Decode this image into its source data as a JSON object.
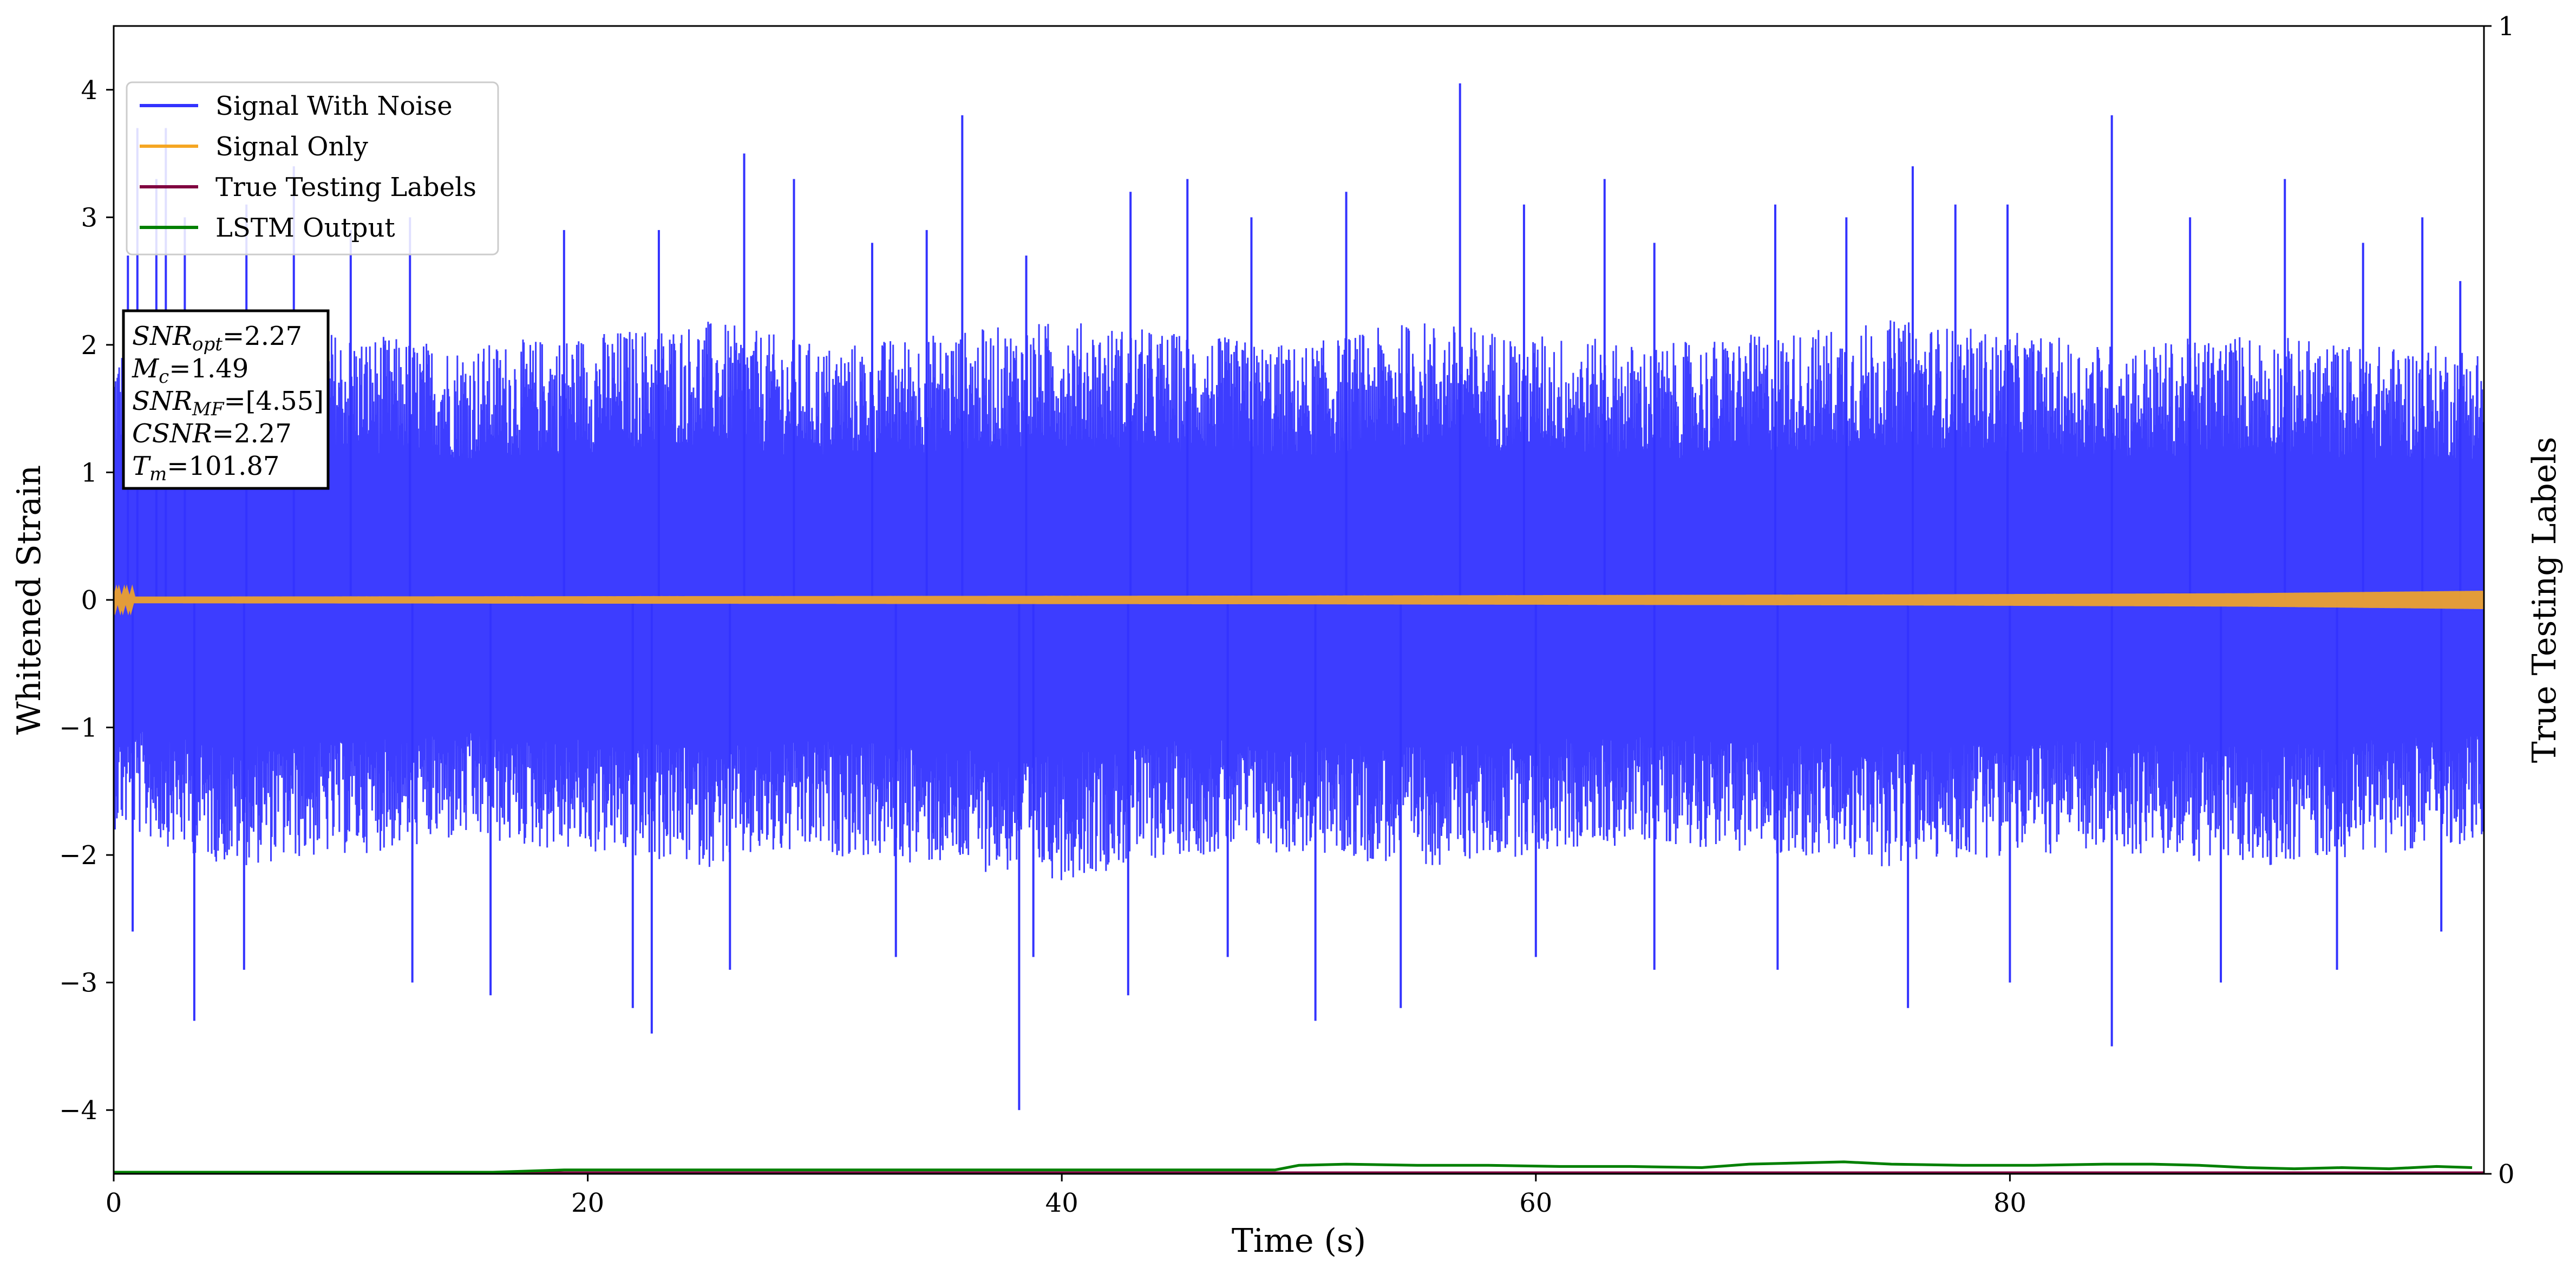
{
  "chart_data": {
    "type": "line",
    "xlabel": "Time (s)",
    "ylabel": "Whitened Strain",
    "y2label": "True Testing Labels",
    "xlim": [
      0,
      100
    ],
    "ylim": [
      -4.5,
      4.5
    ],
    "y2lim": [
      0,
      1
    ],
    "xticks": [
      0,
      20,
      40,
      60,
      80
    ],
    "yticks": [
      -4,
      -3,
      -2,
      -1,
      0,
      1,
      2,
      3,
      4
    ],
    "y2ticks": [
      0,
      1
    ],
    "xtick_labels": [
      "0",
      "20",
      "40",
      "60",
      "80"
    ],
    "ytick_labels": [
      "−4",
      "−3",
      "−2",
      "−1",
      "0",
      "1",
      "2",
      "3",
      "4"
    ],
    "y2tick_labels": [
      "0",
      "1"
    ],
    "grid": false,
    "legend_position": "top-left",
    "series": [
      {
        "name": "Signal With Noise",
        "color": "#3333ff",
        "axis": "left",
        "envelope": {
          "x": [
            0,
            5,
            10,
            15,
            20,
            25,
            30,
            35,
            40,
            45,
            50,
            55,
            60,
            65,
            70,
            75,
            80,
            85,
            90,
            95,
            100
          ],
          "upper": [
            2.0,
            2.2,
            2.1,
            2.0,
            2.1,
            2.2,
            2.0,
            2.1,
            2.2,
            2.1,
            2.0,
            2.2,
            2.1,
            2.0,
            2.1,
            2.2,
            2.1,
            2.0,
            2.1,
            2.0,
            2.0
          ],
          "lower": [
            -1.8,
            -2.1,
            -2.0,
            -1.9,
            -2.0,
            -2.1,
            -2.0,
            -2.1,
            -2.2,
            -2.0,
            -2.0,
            -2.1,
            -2.0,
            -1.9,
            -2.0,
            -2.1,
            -2.0,
            -2.0,
            -2.1,
            -2.0,
            -1.9
          ]
        },
        "spikes": [
          [
            0.6,
            2.7
          ],
          [
            1.0,
            3.7
          ],
          [
            1.8,
            3.3
          ],
          [
            2.2,
            3.7
          ],
          [
            3.0,
            3.0
          ],
          [
            5.6,
            3.1
          ],
          [
            7.6,
            3.4
          ],
          [
            10.0,
            2.9
          ],
          [
            12.5,
            3.0
          ],
          [
            19.0,
            2.9
          ],
          [
            23.0,
            2.9
          ],
          [
            26.6,
            3.5
          ],
          [
            28.7,
            3.3
          ],
          [
            32.0,
            2.8
          ],
          [
            34.3,
            2.9
          ],
          [
            35.8,
            3.8
          ],
          [
            38.5,
            2.7
          ],
          [
            42.9,
            3.2
          ],
          [
            45.3,
            3.3
          ],
          [
            48.0,
            3.0
          ],
          [
            52.0,
            3.2
          ],
          [
            56.8,
            4.05
          ],
          [
            59.5,
            3.1
          ],
          [
            62.9,
            3.3
          ],
          [
            65.0,
            2.8
          ],
          [
            70.1,
            3.1
          ],
          [
            73.1,
            3.0
          ],
          [
            75.9,
            3.4
          ],
          [
            77.7,
            3.1
          ],
          [
            79.9,
            3.1
          ],
          [
            84.3,
            3.8
          ],
          [
            87.6,
            3.0
          ],
          [
            91.6,
            3.3
          ],
          [
            94.9,
            2.8
          ],
          [
            97.4,
            3.0
          ],
          [
            99.0,
            2.5
          ],
          [
            0.8,
            -2.6
          ],
          [
            3.4,
            -3.3
          ],
          [
            5.5,
            -2.9
          ],
          [
            12.6,
            -3.0
          ],
          [
            15.9,
            -3.1
          ],
          [
            21.9,
            -3.2
          ],
          [
            22.7,
            -3.4
          ],
          [
            26.0,
            -2.9
          ],
          [
            33.0,
            -2.8
          ],
          [
            38.2,
            -4.0
          ],
          [
            38.8,
            -2.8
          ],
          [
            42.8,
            -3.1
          ],
          [
            47.0,
            -2.8
          ],
          [
            50.7,
            -3.3
          ],
          [
            54.3,
            -3.2
          ],
          [
            60.0,
            -2.8
          ],
          [
            65.0,
            -2.9
          ],
          [
            70.2,
            -2.9
          ],
          [
            75.7,
            -3.2
          ],
          [
            80.0,
            -3.0
          ],
          [
            84.3,
            -3.5
          ],
          [
            88.9,
            -3.0
          ],
          [
            93.8,
            -2.9
          ],
          [
            98.2,
            -2.6
          ]
        ]
      },
      {
        "name": "Signal Only",
        "color": "#f5a623",
        "axis": "left",
        "x": [
          0,
          25,
          50,
          75,
          90,
          100
        ],
        "amplitude": [
          0.02,
          0.025,
          0.03,
          0.04,
          0.05,
          0.07
        ]
      },
      {
        "name": "True Testing Labels",
        "color": "#800040",
        "axis": "right",
        "x": [
          0,
          100
        ],
        "y": [
          0,
          0
        ]
      },
      {
        "name": "LSTM Output",
        "color": "#008000",
        "axis": "right",
        "x": [
          0,
          10,
          16,
          19,
          22,
          26,
          30,
          35,
          40,
          45,
          49,
          50,
          52,
          55,
          58,
          61,
          64,
          67,
          69,
          71,
          73,
          75,
          78,
          81,
          84,
          86,
          88,
          90,
          92,
          94,
          96,
          98,
          99.5
        ],
        "y": [
          0.0,
          0.0,
          0.0,
          0.002,
          0.002,
          0.002,
          0.002,
          0.002,
          0.002,
          0.002,
          0.002,
          0.006,
          0.007,
          0.006,
          0.006,
          0.005,
          0.005,
          0.004,
          0.007,
          0.008,
          0.009,
          0.007,
          0.006,
          0.006,
          0.007,
          0.007,
          0.006,
          0.004,
          0.003,
          0.004,
          0.003,
          0.005,
          0.004
        ]
      }
    ],
    "annotation": {
      "lines": [
        {
          "var": "SNR",
          "sub": "opt",
          "value": "=2.27"
        },
        {
          "var": "M",
          "sub": "c",
          "value": "=1.49"
        },
        {
          "var": "SNR",
          "sub": "MF",
          "value": "=[4.55]"
        },
        {
          "var": "CSNR",
          "sub": "",
          "value": "=2.27"
        },
        {
          "var": "T",
          "sub": "m",
          "value": "=101.87"
        }
      ]
    }
  }
}
